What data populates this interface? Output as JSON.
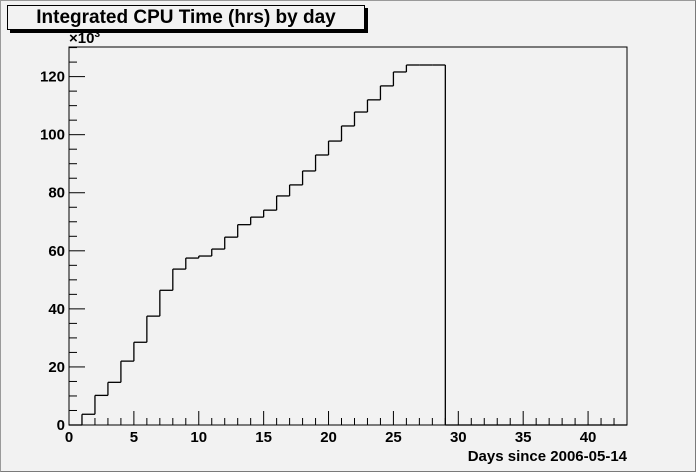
{
  "chart_data": {
    "type": "bar",
    "style": "step-histogram",
    "title": "Integrated CPU Time (hrs) by day",
    "xlabel": "Days since 2006-05-14",
    "ylabel": "",
    "y_multiplier_label": "×10",
    "y_multiplier_exponent": "3",
    "xlim": [
      0,
      43
    ],
    "ylim": [
      0,
      130.2
    ],
    "x_ticks": [
      0,
      5,
      10,
      15,
      20,
      25,
      30,
      35,
      40
    ],
    "y_ticks": [
      0,
      20,
      40,
      60,
      80,
      100,
      120
    ],
    "grid": false,
    "bin_width": 1,
    "bin_starts": [
      0,
      1,
      2,
      3,
      4,
      5,
      6,
      7,
      8,
      9,
      10,
      11,
      12,
      13,
      14,
      15,
      16,
      17,
      18,
      19,
      20,
      21,
      22,
      23,
      24,
      25,
      26,
      27,
      28,
      29,
      30,
      31,
      32,
      33,
      34,
      35,
      36,
      37,
      38,
      39,
      40,
      41,
      42
    ],
    "values": [
      0,
      3.7,
      10.2,
      14.7,
      22.0,
      28.5,
      37.5,
      46.4,
      53.7,
      57.5,
      58.2,
      60.6,
      64.7,
      69.0,
      71.6,
      74.0,
      78.9,
      82.7,
      87.5,
      93.0,
      97.8,
      103.0,
      107.8,
      112.0,
      116.8,
      121.6,
      124.0,
      124.0,
      124.0,
      0,
      0,
      0,
      0,
      0,
      0,
      0,
      0,
      0,
      0,
      0,
      0,
      0,
      0
    ],
    "line_color": "#000000",
    "background_color": "#f2f2f2"
  }
}
